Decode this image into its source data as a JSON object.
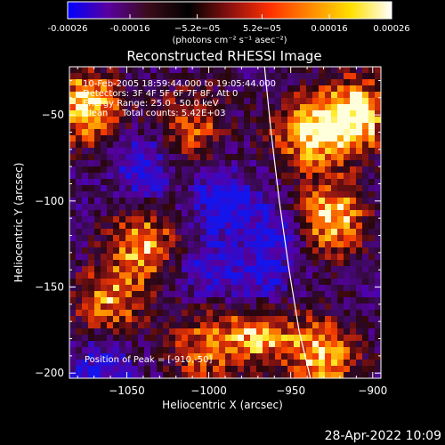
{
  "colorbar": {
    "tick_labels": [
      "-0.00026",
      "-0.00016",
      "−5.2e−05",
      "5.2e−05",
      "0.00016",
      "0.00026"
    ],
    "tick_values": [
      -0.00026,
      -0.00016,
      -5.2e-05,
      5.2e-05,
      0.00016,
      0.00026
    ],
    "range": [
      -0.00026,
      0.00026
    ],
    "units": "(photons cm⁻² s⁻¹ asec⁻²)",
    "colors": [
      "#0000ff",
      "#5a00a0",
      "#3a0b18",
      "#000000",
      "#8a1010",
      "#ff3000",
      "#ff8a00",
      "#ffe000",
      "#ffffff"
    ]
  },
  "plot": {
    "title": "Reconstructed RHESSI Image",
    "annotations": [
      "10-Feb-2005 18:59:44.000 to 19:05:44.000",
      "Detectors: 3F 4F 5F 6F 7F 8F, Att 0",
      "Energy Range: 25.0 - 50.0 keV",
      "Clean     Total counts: 5.42E+03"
    ],
    "peak_label": "Position of Peak = [-910,-50]"
  },
  "chart_data": {
    "type": "heatmap",
    "title": "Reconstructed RHESSI Image",
    "xlabel": "Heliocentric X (arcsec)",
    "ylabel": "Heliocentric Y (arcsec)",
    "xlim": [
      -1085,
      -895
    ],
    "ylim": [
      -203,
      -22
    ],
    "x_ticks": [
      -1050,
      -1000,
      -950,
      -900
    ],
    "y_ticks": [
      -50,
      -100,
      -150,
      -200
    ],
    "x_tick_labels": [
      "−1050",
      "−1000",
      "−950",
      "−900"
    ],
    "y_tick_labels": [
      "−50",
      "−100",
      "−150",
      "−200"
    ],
    "peak_position": [
      -910,
      -50
    ],
    "limb_curve": [
      [
        -966,
        -22
      ],
      [
        -962,
        -60
      ],
      [
        -957,
        -100
      ],
      [
        -951,
        -140
      ],
      [
        -945,
        -175
      ],
      [
        -938,
        -203
      ]
    ],
    "hot_regions": [
      {
        "x": -1075,
        "y": -45,
        "level": 0.95
      },
      {
        "x": -1040,
        "y": -125,
        "level": 0.75
      },
      {
        "x": -1060,
        "y": -160,
        "level": 0.7
      },
      {
        "x": -1010,
        "y": -55,
        "level": 0.6
      },
      {
        "x": -940,
        "y": -60,
        "level": 0.85
      },
      {
        "x": -910,
        "y": -50,
        "level": 1.0
      },
      {
        "x": -925,
        "y": -110,
        "level": 0.9
      },
      {
        "x": -930,
        "y": -190,
        "level": 0.85
      },
      {
        "x": -970,
        "y": -175,
        "level": 0.8
      },
      {
        "x": -1005,
        "y": -185,
        "level": 0.6
      }
    ],
    "cold_regions": [
      {
        "x": -1040,
        "y": -80,
        "level": 0.8
      },
      {
        "x": -990,
        "y": -100,
        "level": 0.9
      },
      {
        "x": -960,
        "y": -120,
        "level": 0.7
      },
      {
        "x": -970,
        "y": -150,
        "level": 0.8
      },
      {
        "x": -1065,
        "y": -195,
        "level": 0.7
      },
      {
        "x": -1000,
        "y": -140,
        "level": 0.6
      }
    ]
  },
  "footer": {
    "timestamp": "28-Apr-2022 10:09"
  }
}
